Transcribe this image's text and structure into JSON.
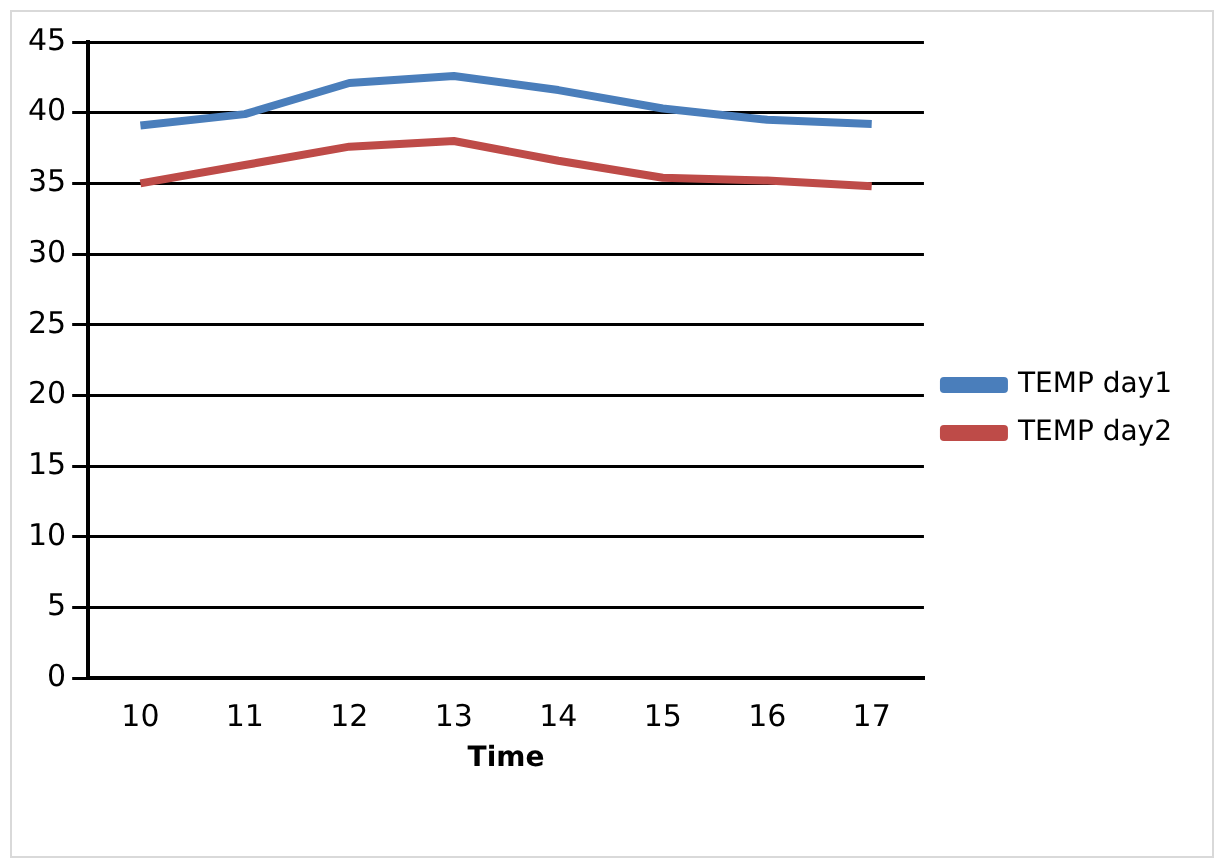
{
  "chart_data": {
    "type": "line",
    "xlabel": "Time",
    "categories": [
      "10",
      "11",
      "12",
      "13",
      "14",
      "15",
      "16",
      "17"
    ],
    "series": [
      {
        "name": "TEMP day1",
        "color": "#4a7ebb",
        "values": [
          39.1,
          39.9,
          42.1,
          42.6,
          41.6,
          40.3,
          39.5,
          39.2
        ]
      },
      {
        "name": "TEMP day2",
        "color": "#be4b48",
        "values": [
          35.0,
          36.3,
          37.6,
          38.0,
          36.6,
          35.4,
          35.2,
          34.8
        ]
      }
    ],
    "ylim": [
      0,
      45
    ],
    "yticks": [
      0,
      5,
      10,
      15,
      20,
      25,
      30,
      35,
      40,
      45
    ],
    "grid": "y",
    "legend": "right",
    "marker": "none"
  }
}
